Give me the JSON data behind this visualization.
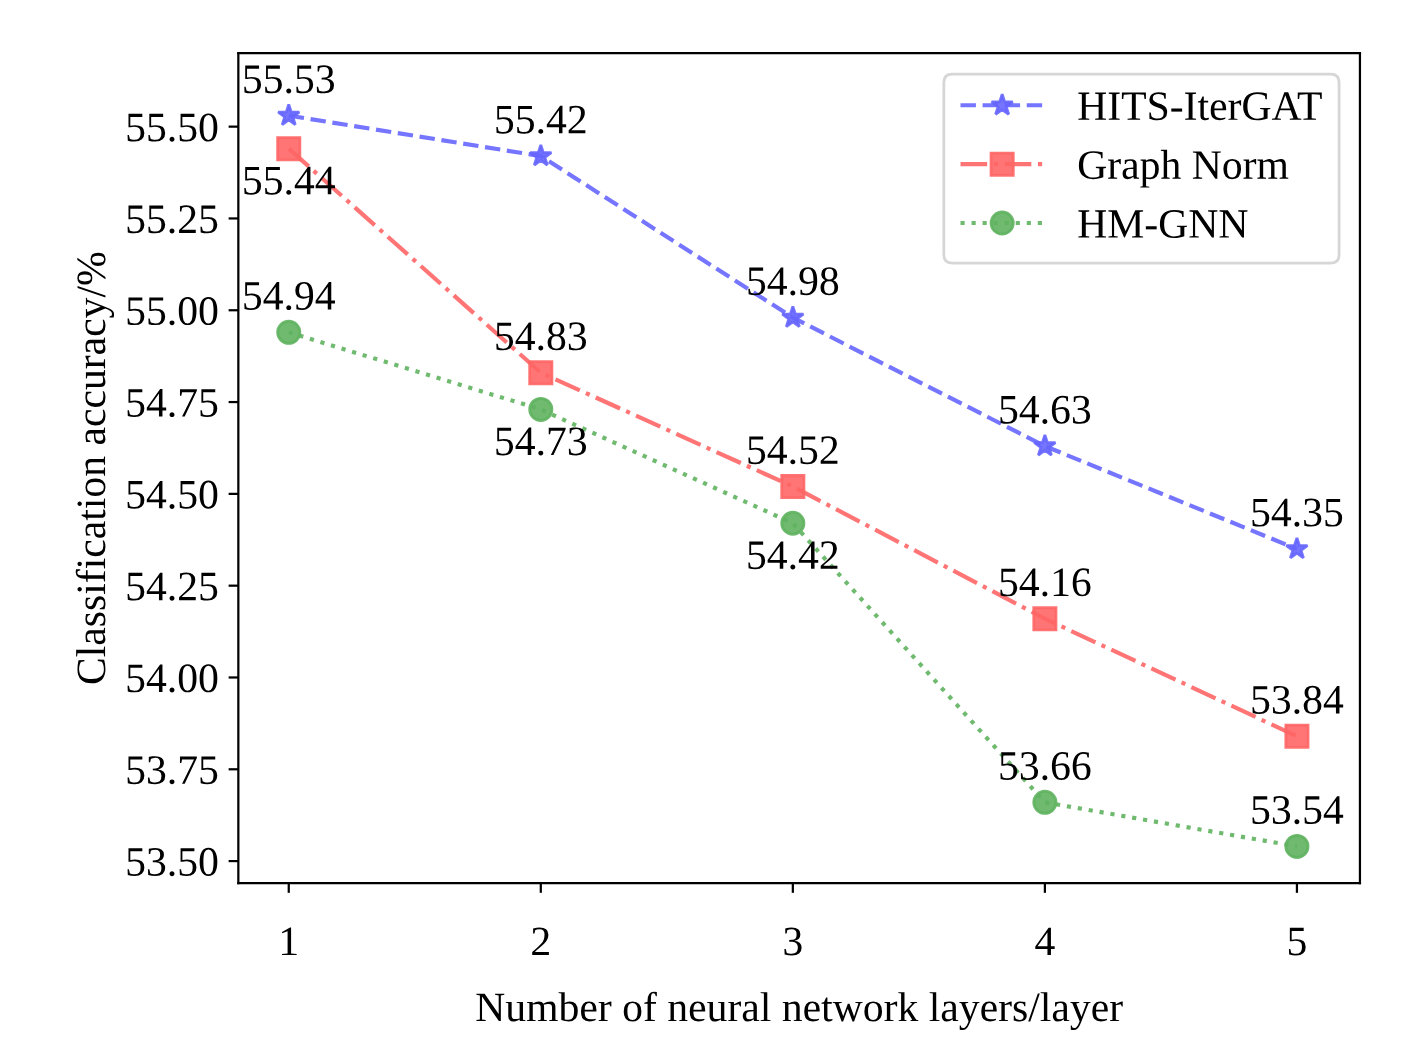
{
  "chart_data": {
    "type": "line",
    "xlabel": "Number of neural network layers/layer",
    "ylabel": "Classification accuracy/%",
    "x": [
      1,
      2,
      3,
      4,
      5
    ],
    "series": [
      {
        "name": "HITS-IterGAT",
        "color": "#6666ff",
        "marker": "star",
        "line_style": "dashed",
        "values": [
          55.53,
          55.42,
          54.98,
          54.63,
          54.35
        ]
      },
      {
        "name": "Graph Norm",
        "color": "#ff6666",
        "marker": "square",
        "line_style": "dashdot",
        "values": [
          55.44,
          54.83,
          54.52,
          54.16,
          53.84
        ]
      },
      {
        "name": "HM-GNN",
        "color": "#5fb35f",
        "marker": "circle",
        "line_style": "dotted",
        "values": [
          54.94,
          54.73,
          54.42,
          53.66,
          53.54
        ]
      }
    ],
    "xlim": [
      0.8,
      5.25
    ],
    "ylim": [
      53.44,
      55.7
    ],
    "xticks": [
      1,
      2,
      3,
      4,
      5
    ],
    "yticks": [
      {
        "value": 53.5,
        "label": "53.50"
      },
      {
        "value": 53.75,
        "label": "53.75"
      },
      {
        "value": 54.0,
        "label": "54.00"
      },
      {
        "value": 54.25,
        "label": "54.25"
      },
      {
        "value": 54.5,
        "label": "54.50"
      },
      {
        "value": 54.75,
        "label": "54.75"
      },
      {
        "value": 55.0,
        "label": "55.00"
      },
      {
        "value": 55.25,
        "label": "55.25"
      },
      {
        "value": 55.5,
        "label": "55.50"
      }
    ],
    "data_labels": true,
    "legend": "top right",
    "grid": false
  }
}
